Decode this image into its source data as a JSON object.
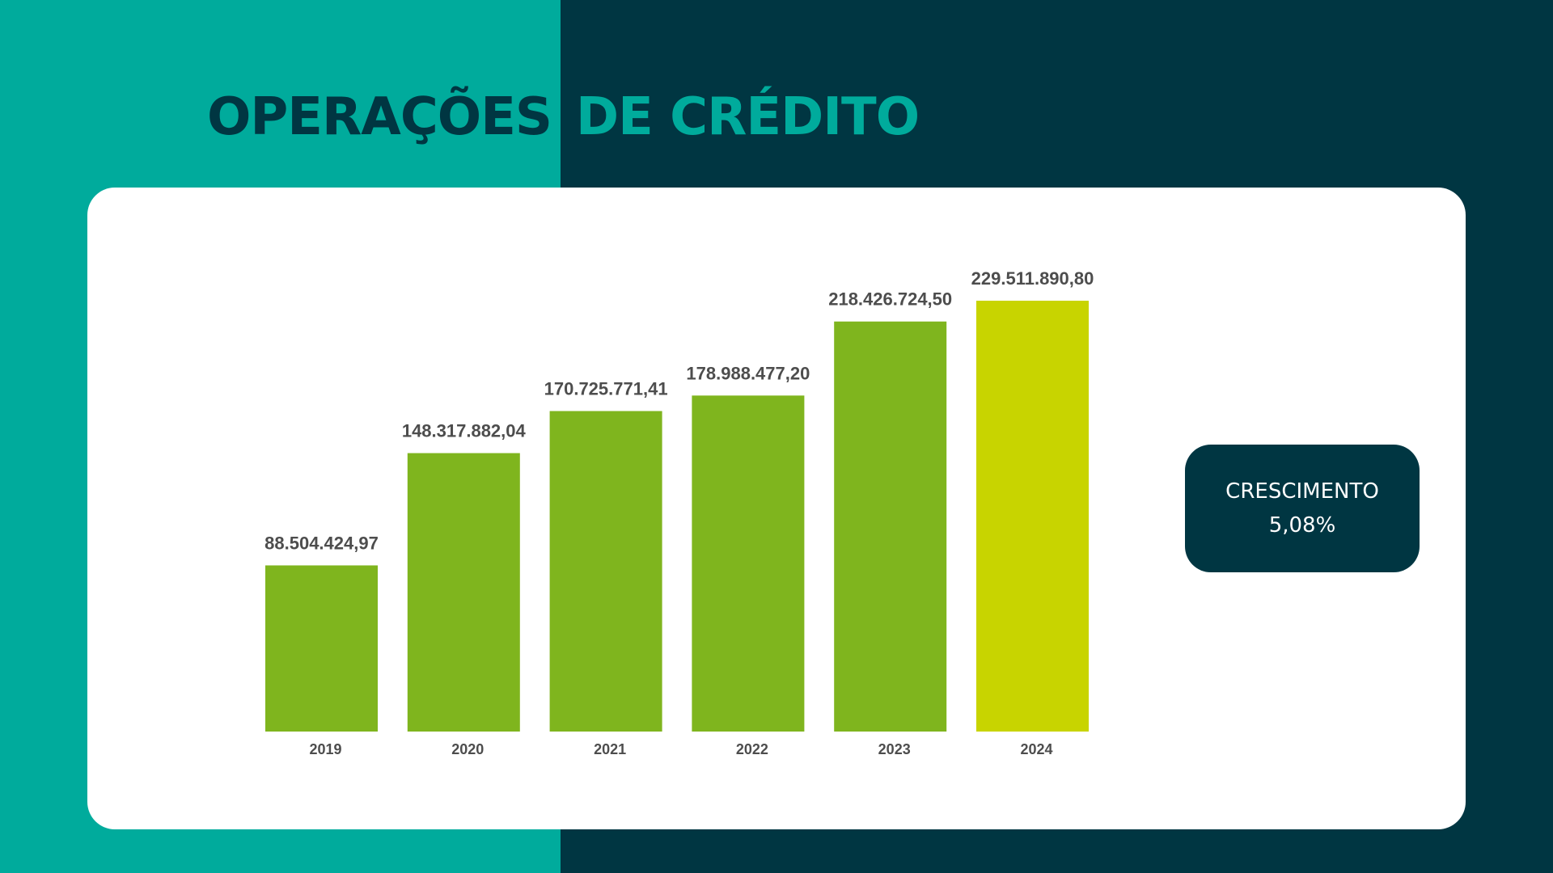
{
  "title": {
    "part1": "OPERAÇÕES",
    "part2": "DE CRÉDITO"
  },
  "colors": {
    "teal": "#00ab9c",
    "navy": "#003642",
    "bar_green": "#7fb51e",
    "bar_highlight": "#c8d400",
    "card": "#ffffff",
    "label_text": "#4d4d4d"
  },
  "badge": {
    "label": "CRESCIMENTO",
    "value": "5,08%"
  },
  "chart_data": {
    "type": "bar",
    "categories": [
      "2019",
      "2020",
      "2021",
      "2022",
      "2023",
      "2024"
    ],
    "values": [
      88504424.97,
      148317882.04,
      170725771.41,
      178988477.2,
      218426724.5,
      229511890.8
    ],
    "value_labels": [
      "88.504.424,97",
      "148.317.882,04",
      "170.725.771,41",
      "178.988.477,20",
      "218.426.724,50",
      "229.511.890,80"
    ],
    "highlight_index": 5,
    "ylim": [
      0,
      229511890.8
    ],
    "grid": false,
    "legend": "none",
    "title": "",
    "xlabel": "",
    "ylabel": ""
  }
}
